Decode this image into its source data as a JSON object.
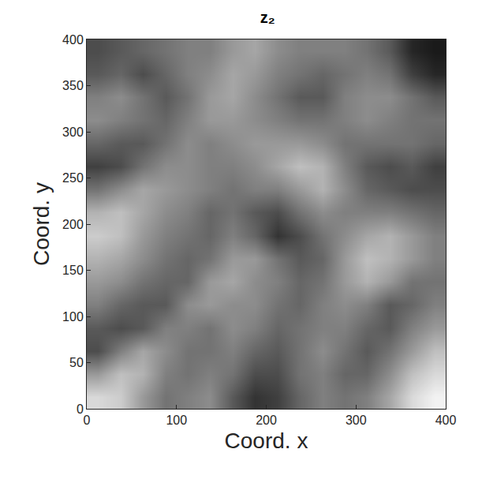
{
  "chart_data": {
    "type": "heatmap",
    "title": "z₂",
    "x_label": "Coord. x",
    "y_label": "Coord. y",
    "color": "gray",
    "xlim": [
      0,
      400
    ],
    "ylim": [
      0,
      400
    ],
    "xticks": [
      0,
      100,
      200,
      300,
      400
    ],
    "yticks": [
      0,
      50,
      100,
      150,
      200,
      250,
      300,
      350,
      400
    ],
    "zlim": [
      0,
      1
    ],
    "x": [
      12.5,
      37.5,
      62.5,
      87.5,
      112.5,
      137.5,
      162.5,
      187.5,
      212.5,
      237.5,
      262.5,
      287.5,
      312.5,
      337.5,
      362.5,
      387.5
    ],
    "y": [
      12.5,
      37.5,
      62.5,
      87.5,
      112.5,
      137.5,
      162.5,
      187.5,
      212.5,
      237.5,
      262.5,
      287.5,
      312.5,
      337.5,
      362.5,
      387.5
    ],
    "cells": [
      [
        0.85,
        0.8,
        0.6,
        0.45,
        0.5,
        0.55,
        0.35,
        0.2,
        0.25,
        0.4,
        0.5,
        0.45,
        0.5,
        0.65,
        0.85,
        0.95
      ],
      [
        0.6,
        0.75,
        0.7,
        0.5,
        0.45,
        0.5,
        0.45,
        0.3,
        0.3,
        0.45,
        0.5,
        0.4,
        0.4,
        0.55,
        0.75,
        0.85
      ],
      [
        0.3,
        0.5,
        0.65,
        0.55,
        0.45,
        0.45,
        0.5,
        0.4,
        0.35,
        0.45,
        0.55,
        0.45,
        0.35,
        0.45,
        0.6,
        0.75
      ],
      [
        0.35,
        0.3,
        0.35,
        0.5,
        0.5,
        0.45,
        0.55,
        0.5,
        0.4,
        0.45,
        0.5,
        0.5,
        0.4,
        0.35,
        0.5,
        0.6
      ],
      [
        0.5,
        0.4,
        0.35,
        0.35,
        0.55,
        0.6,
        0.55,
        0.55,
        0.45,
        0.4,
        0.5,
        0.55,
        0.5,
        0.35,
        0.4,
        0.5
      ],
      [
        0.6,
        0.55,
        0.45,
        0.4,
        0.4,
        0.6,
        0.65,
        0.55,
        0.5,
        0.4,
        0.45,
        0.6,
        0.7,
        0.6,
        0.45,
        0.45
      ],
      [
        0.7,
        0.65,
        0.55,
        0.45,
        0.4,
        0.45,
        0.6,
        0.6,
        0.45,
        0.35,
        0.4,
        0.6,
        0.75,
        0.7,
        0.6,
        0.5
      ],
      [
        0.8,
        0.75,
        0.6,
        0.5,
        0.45,
        0.4,
        0.5,
        0.4,
        0.2,
        0.3,
        0.45,
        0.55,
        0.65,
        0.7,
        0.6,
        0.5
      ],
      [
        0.7,
        0.75,
        0.65,
        0.55,
        0.5,
        0.4,
        0.45,
        0.35,
        0.3,
        0.45,
        0.55,
        0.5,
        0.5,
        0.5,
        0.45,
        0.4
      ],
      [
        0.45,
        0.55,
        0.65,
        0.6,
        0.55,
        0.5,
        0.45,
        0.5,
        0.5,
        0.6,
        0.7,
        0.55,
        0.4,
        0.35,
        0.3,
        0.3
      ],
      [
        0.25,
        0.3,
        0.45,
        0.55,
        0.55,
        0.5,
        0.5,
        0.55,
        0.65,
        0.75,
        0.7,
        0.5,
        0.35,
        0.3,
        0.35,
        0.25
      ],
      [
        0.4,
        0.35,
        0.35,
        0.45,
        0.55,
        0.5,
        0.55,
        0.6,
        0.6,
        0.6,
        0.55,
        0.45,
        0.45,
        0.45,
        0.45,
        0.4
      ],
      [
        0.55,
        0.5,
        0.45,
        0.4,
        0.5,
        0.6,
        0.6,
        0.55,
        0.5,
        0.45,
        0.45,
        0.5,
        0.55,
        0.5,
        0.45,
        0.45
      ],
      [
        0.5,
        0.55,
        0.45,
        0.35,
        0.45,
        0.6,
        0.65,
        0.55,
        0.45,
        0.35,
        0.35,
        0.5,
        0.55,
        0.55,
        0.45,
        0.35
      ],
      [
        0.35,
        0.4,
        0.3,
        0.4,
        0.5,
        0.55,
        0.65,
        0.6,
        0.5,
        0.45,
        0.4,
        0.45,
        0.5,
        0.45,
        0.25,
        0.15
      ],
      [
        0.3,
        0.35,
        0.4,
        0.45,
        0.5,
        0.5,
        0.6,
        0.65,
        0.55,
        0.5,
        0.5,
        0.5,
        0.45,
        0.35,
        0.15,
        0.1
      ]
    ]
  }
}
